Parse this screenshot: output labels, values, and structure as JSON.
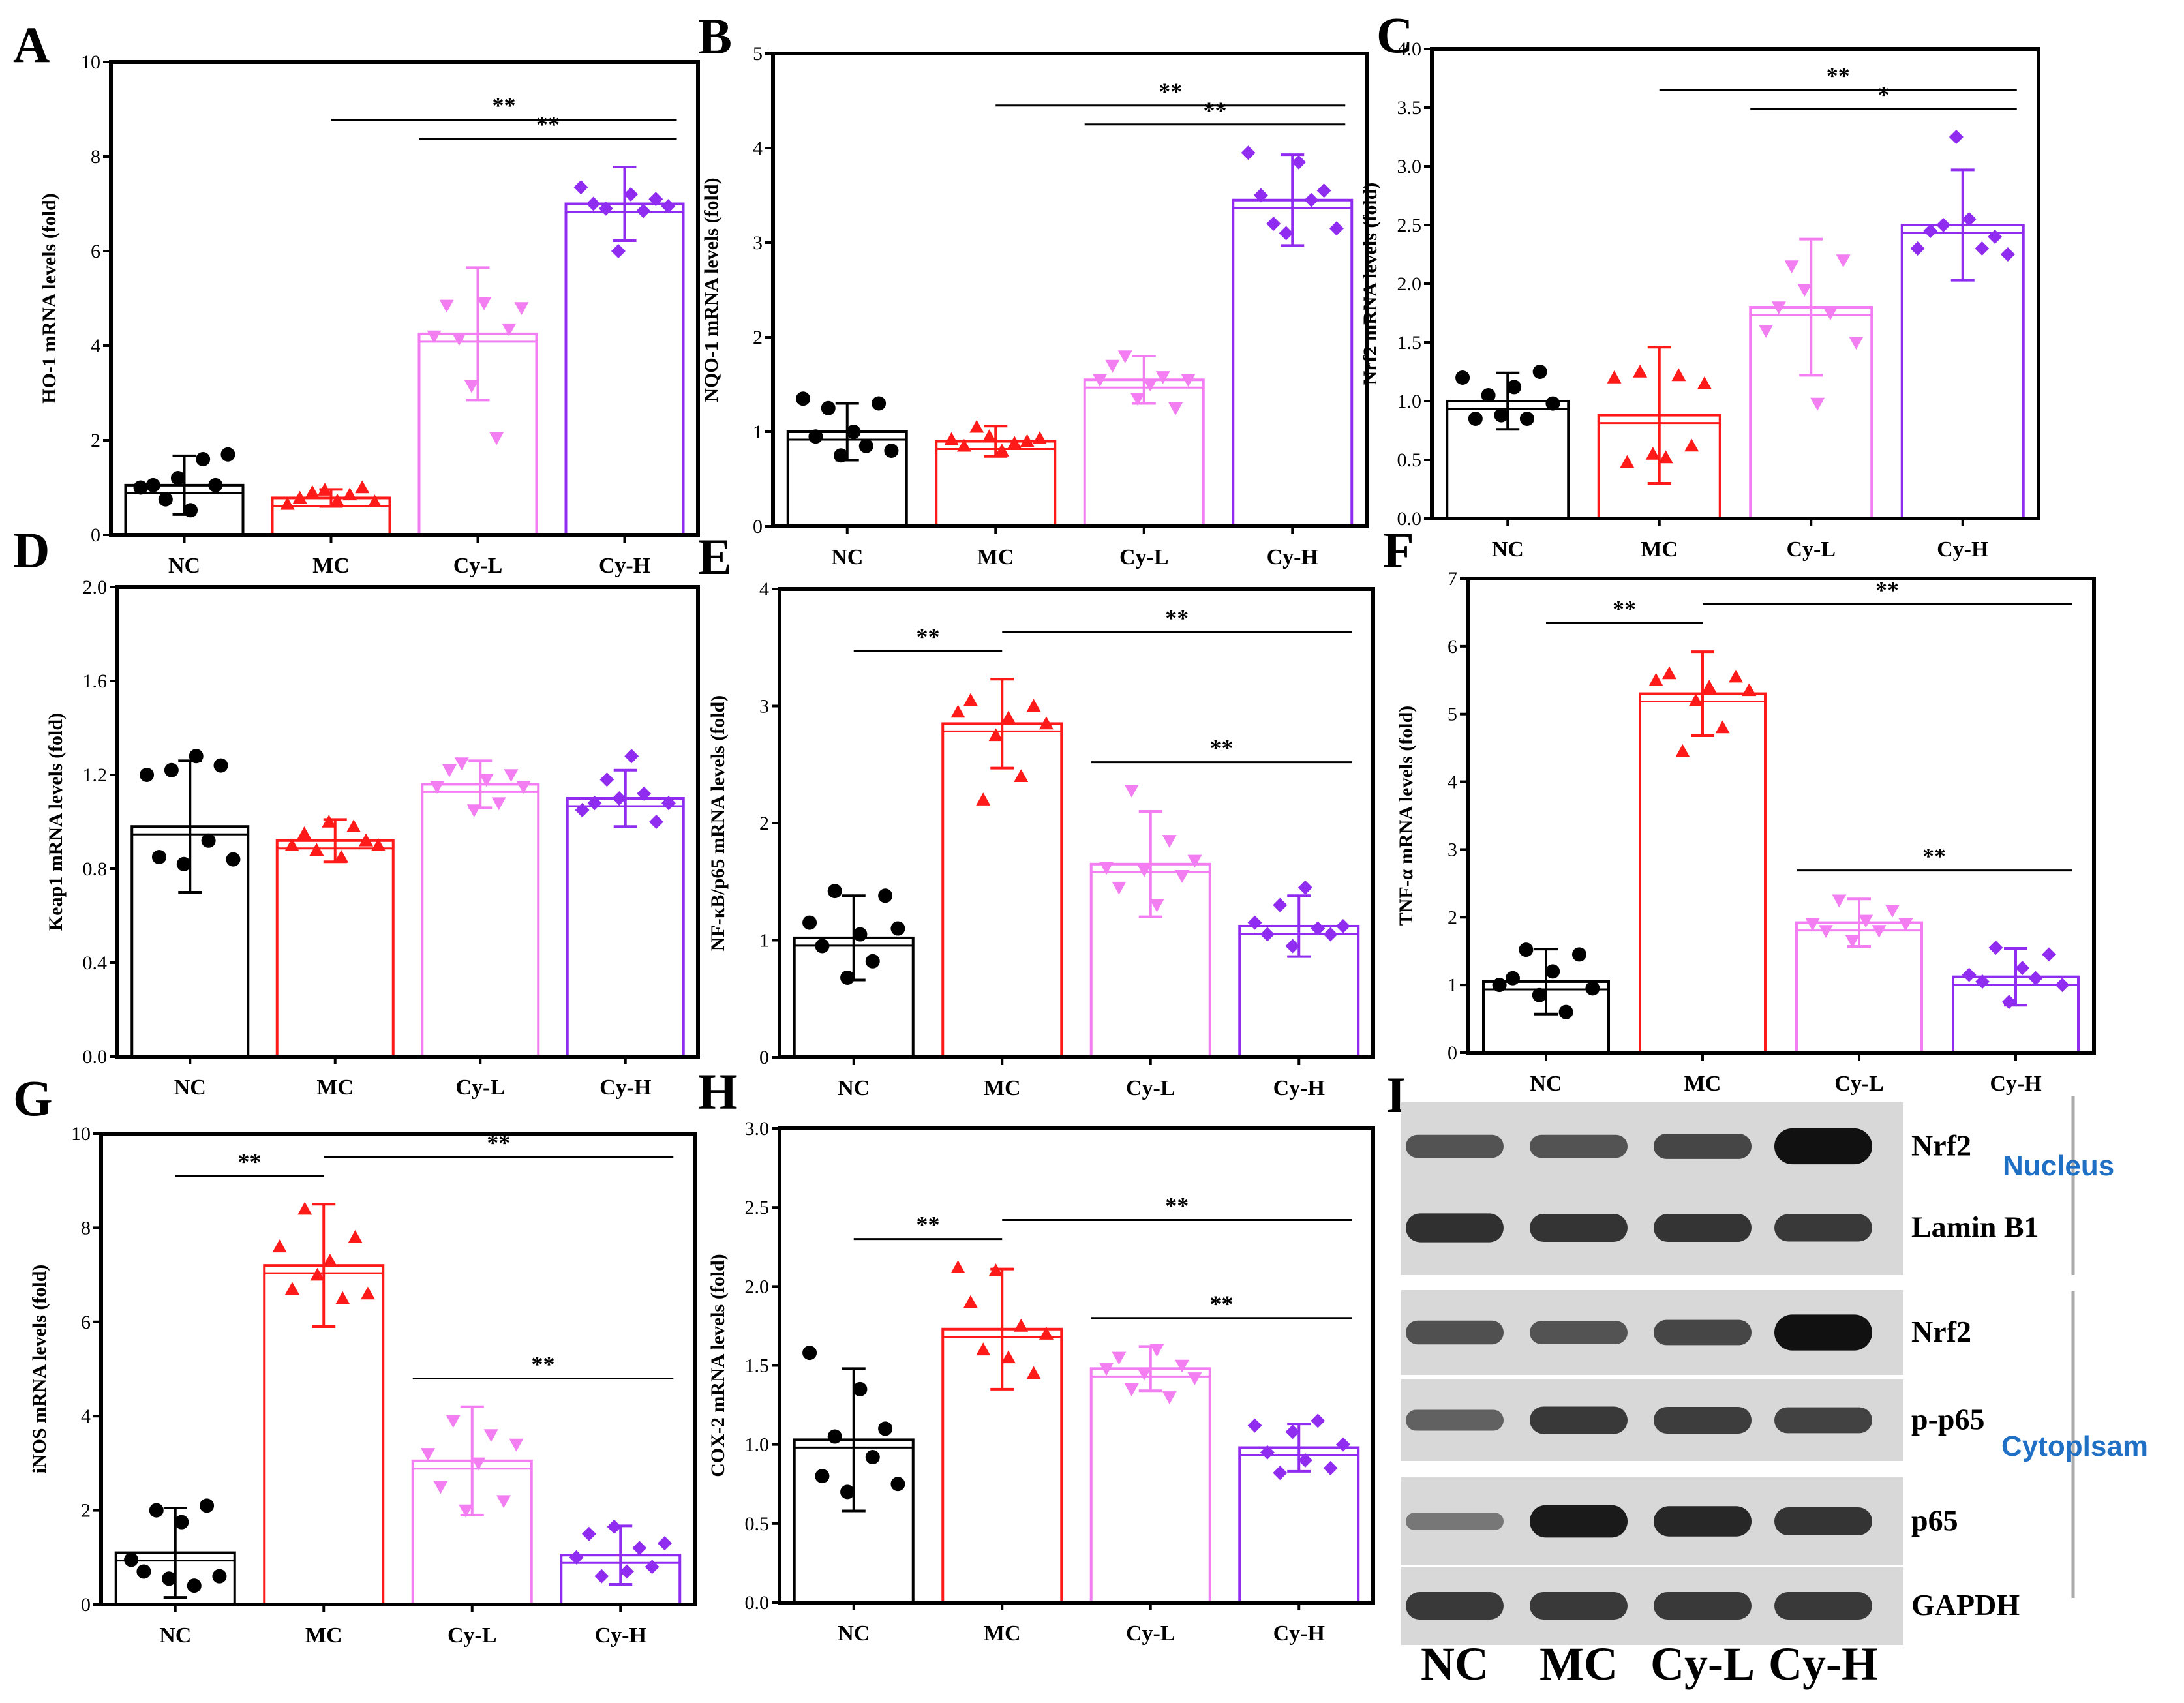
{
  "colors": {
    "NC": "#000000",
    "MC": "#ff1a1a",
    "Cy-L": "#f27ef2",
    "Cy-H": "#8f2cf0",
    "region_label": "#1f6fc4"
  },
  "chart_data": [
    {
      "panel": "A",
      "type": "bar",
      "categories": [
        "NC",
        "MC",
        "Cy-L",
        "Cy-H"
      ],
      "ylabel": "HO-1 mRNA levels (fold)",
      "ylim": [
        0,
        10
      ],
      "yticks": [
        "0",
        "2",
        "4",
        "6",
        "8",
        "10"
      ],
      "markers": [
        "circle",
        "triangle",
        "tri-down",
        "diamond"
      ],
      "values": [
        1.05,
        0.78,
        4.25,
        7.0
      ],
      "err": [
        0.62,
        0.18,
        1.4,
        0.78
      ],
      "points": [
        [
          1.0,
          1.05,
          0.75,
          1.2,
          0.52,
          1.6,
          1.05,
          1.7
        ],
        [
          0.65,
          0.78,
          0.9,
          0.95,
          0.72,
          0.85,
          1.0,
          0.7
        ],
        [
          4.2,
          4.85,
          4.15,
          3.15,
          4.9,
          2.05,
          4.35,
          4.8
        ],
        [
          7.35,
          7.0,
          6.9,
          6.0,
          7.2,
          6.85,
          7.1,
          6.95
        ]
      ],
      "sig": [
        {
          "from": 1,
          "to": 3,
          "text": "**"
        },
        {
          "from": 2,
          "to": 3,
          "text": "**"
        }
      ]
    },
    {
      "panel": "B",
      "type": "bar",
      "categories": [
        "NC",
        "MC",
        "Cy-L",
        "Cy-H"
      ],
      "ylabel": "NQO-1 mRNA levels (fold)",
      "ylim": [
        0,
        5
      ],
      "yticks": [
        "0",
        "1",
        "2",
        "3",
        "4",
        "5"
      ],
      "markers": [
        "circle",
        "triangle",
        "tri-down",
        "diamond"
      ],
      "values": [
        1.0,
        0.9,
        1.55,
        3.45
      ],
      "err": [
        0.3,
        0.16,
        0.25,
        0.48
      ],
      "points": [
        [
          1.35,
          0.95,
          1.25,
          0.75,
          1.0,
          0.85,
          1.3,
          0.8
        ],
        [
          0.92,
          0.85,
          1.05,
          0.95,
          0.8,
          0.88,
          0.9,
          0.93
        ],
        [
          1.55,
          1.7,
          1.8,
          1.35,
          1.5,
          1.58,
          1.25,
          1.55
        ],
        [
          3.95,
          3.5,
          3.2,
          3.1,
          3.85,
          3.45,
          3.55,
          3.15
        ]
      ],
      "sig": [
        {
          "from": 1,
          "to": 3,
          "text": "**"
        },
        {
          "from": 2,
          "to": 3,
          "text": "**"
        }
      ]
    },
    {
      "panel": "C",
      "type": "bar",
      "categories": [
        "NC",
        "MC",
        "Cy-L",
        "Cy-H"
      ],
      "ylabel": "Nrf2 mRNA levels (fold)",
      "ylim": [
        0,
        4
      ],
      "yticks": [
        "0.0",
        "0.5",
        "1.0",
        "1.5",
        "2.0",
        "2.5",
        "3.0",
        "3.5",
        "4.0"
      ],
      "markers": [
        "circle",
        "triangle",
        "tri-down",
        "diamond"
      ],
      "values": [
        1.0,
        0.88,
        1.8,
        2.5
      ],
      "err": [
        0.24,
        0.58,
        0.58,
        0.47
      ],
      "points": [
        [
          1.2,
          0.85,
          1.05,
          0.88,
          1.12,
          0.85,
          1.25,
          0.98
        ],
        [
          1.2,
          0.48,
          1.25,
          0.55,
          0.52,
          1.22,
          0.62,
          1.15
        ],
        [
          1.6,
          1.8,
          2.15,
          1.95,
          0.98,
          1.75,
          2.2,
          1.5
        ],
        [
          2.3,
          2.45,
          2.5,
          3.25,
          2.55,
          2.3,
          2.4,
          2.25
        ]
      ],
      "sig": [
        {
          "from": 1,
          "to": 3,
          "text": "**"
        },
        {
          "from": 2,
          "to": 3,
          "text": "*"
        }
      ]
    },
    {
      "panel": "D",
      "type": "bar",
      "categories": [
        "NC",
        "MC",
        "Cy-L",
        "Cy-H"
      ],
      "ylabel": "Keap1 mRNA levels (fold)",
      "ylim": [
        0,
        2
      ],
      "yticks": [
        "0.0",
        "0.4",
        "0.8",
        "1.2",
        "1.6",
        "2.0"
      ],
      "markers": [
        "circle",
        "triangle",
        "tri-down",
        "diamond"
      ],
      "values": [
        0.98,
        0.92,
        1.16,
        1.1
      ],
      "err": [
        0.28,
        0.09,
        0.1,
        0.12
      ],
      "points": [
        [
          1.2,
          0.85,
          1.22,
          0.82,
          1.28,
          0.92,
          1.24,
          0.84
        ],
        [
          0.9,
          0.95,
          0.88,
          1.0,
          0.85,
          0.98,
          0.92,
          0.9
        ],
        [
          1.15,
          1.22,
          1.25,
          1.05,
          1.18,
          1.08,
          1.2,
          1.15
        ],
        [
          1.05,
          1.08,
          1.18,
          1.1,
          1.28,
          1.12,
          1.0,
          1.08
        ]
      ],
      "sig": []
    },
    {
      "panel": "E",
      "type": "bar",
      "categories": [
        "NC",
        "MC",
        "Cy-L",
        "Cy-H"
      ],
      "ylabel": "NF-κB/p65 mRNA levels (fold)",
      "ylim": [
        0,
        4
      ],
      "yticks": [
        "0",
        "1",
        "2",
        "3",
        "4"
      ],
      "markers": [
        "circle",
        "triangle",
        "tri-down",
        "diamond"
      ],
      "values": [
        1.02,
        2.85,
        1.65,
        1.12
      ],
      "err": [
        0.36,
        0.38,
        0.45,
        0.26
      ],
      "points": [
        [
          1.15,
          0.95,
          1.42,
          0.68,
          1.05,
          0.82,
          1.38,
          1.1
        ],
        [
          2.95,
          3.05,
          2.2,
          2.75,
          2.9,
          2.4,
          3.0,
          2.85
        ],
        [
          1.62,
          1.45,
          2.28,
          1.6,
          1.3,
          1.85,
          1.55,
          1.68
        ],
        [
          1.15,
          1.05,
          1.3,
          0.95,
          1.45,
          1.1,
          1.05,
          1.12
        ]
      ],
      "sig": [
        {
          "from": 0,
          "to": 1,
          "text": "**"
        },
        {
          "from": 1,
          "to": 3,
          "text": "**"
        },
        {
          "from": 2,
          "to": 3,
          "text": "**"
        }
      ]
    },
    {
      "panel": "F",
      "type": "bar",
      "categories": [
        "NC",
        "MC",
        "Cy-L",
        "Cy-H"
      ],
      "ylabel": "TNF-α mRNA levels (fold)",
      "ylim": [
        0,
        7
      ],
      "yticks": [
        "0",
        "1",
        "2",
        "3",
        "4",
        "5",
        "6",
        "7"
      ],
      "markers": [
        "circle",
        "triangle",
        "tri-down",
        "diamond"
      ],
      "values": [
        1.05,
        5.3,
        1.92,
        1.12
      ],
      "err": [
        0.48,
        0.62,
        0.35,
        0.42
      ],
      "points": [
        [
          1.0,
          1.1,
          1.52,
          0.85,
          1.2,
          0.6,
          1.45,
          0.95
        ],
        [
          5.5,
          5.6,
          4.45,
          5.2,
          5.4,
          4.8,
          5.55,
          5.35
        ],
        [
          1.9,
          1.8,
          2.25,
          1.65,
          1.95,
          1.8,
          2.1,
          1.9
        ],
        [
          1.15,
          1.05,
          1.55,
          0.75,
          1.25,
          1.1,
          1.45,
          1.0
        ]
      ],
      "sig": [
        {
          "from": 0,
          "to": 1,
          "text": "**"
        },
        {
          "from": 1,
          "to": 3,
          "text": "**"
        },
        {
          "from": 2,
          "to": 3,
          "text": "**"
        }
      ]
    },
    {
      "panel": "G",
      "type": "bar",
      "categories": [
        "NC",
        "MC",
        "Cy-L",
        "Cy-H"
      ],
      "ylabel": "iNOS mRNA levels (fold)",
      "ylim": [
        0,
        10
      ],
      "yticks": [
        "0",
        "2",
        "4",
        "6",
        "8",
        "10"
      ],
      "markers": [
        "circle",
        "triangle",
        "tri-down",
        "diamond"
      ],
      "values": [
        1.1,
        7.2,
        3.05,
        1.05
      ],
      "err": [
        0.95,
        1.3,
        1.15,
        0.62
      ],
      "points": [
        [
          0.95,
          0.7,
          2.0,
          0.55,
          1.75,
          0.4,
          2.1,
          0.6
        ],
        [
          7.6,
          6.7,
          8.4,
          7.0,
          7.3,
          6.5,
          7.8,
          6.6
        ],
        [
          3.2,
          2.5,
          3.9,
          2.0,
          3.0,
          3.6,
          2.2,
          3.4
        ],
        [
          1.0,
          1.5,
          0.6,
          1.65,
          0.7,
          1.2,
          0.8,
          1.3
        ]
      ],
      "sig": [
        {
          "from": 0,
          "to": 1,
          "text": "**"
        },
        {
          "from": 1,
          "to": 3,
          "text": "**"
        },
        {
          "from": 2,
          "to": 3,
          "text": "**"
        }
      ]
    },
    {
      "panel": "H",
      "type": "bar",
      "categories": [
        "NC",
        "MC",
        "Cy-L",
        "Cy-H"
      ],
      "ylabel": "COX-2 mRNA levels (fold)",
      "ylim": [
        0,
        3
      ],
      "yticks": [
        "0.0",
        "0.5",
        "1.0",
        "1.5",
        "2.0",
        "2.5",
        "3.0"
      ],
      "markers": [
        "circle",
        "triangle",
        "tri-down",
        "diamond"
      ],
      "values": [
        1.03,
        1.73,
        1.48,
        0.98
      ],
      "err": [
        0.45,
        0.38,
        0.14,
        0.15
      ],
      "points": [
        [
          1.58,
          0.8,
          1.05,
          0.7,
          1.35,
          0.92,
          1.1,
          0.75
        ],
        [
          2.12,
          1.9,
          1.6,
          2.1,
          1.55,
          1.75,
          1.45,
          1.7
        ],
        [
          1.48,
          1.55,
          1.35,
          1.45,
          1.6,
          1.3,
          1.5,
          1.42
        ],
        [
          1.12,
          0.95,
          0.82,
          1.08,
          0.9,
          1.15,
          0.85,
          1.0
        ]
      ],
      "sig": [
        {
          "from": 0,
          "to": 1,
          "text": "**"
        },
        {
          "from": 1,
          "to": 3,
          "text": "**"
        },
        {
          "from": 2,
          "to": 3,
          "text": "**"
        }
      ]
    }
  ],
  "blot": {
    "panel": "I",
    "lanes": [
      "NC",
      "MC",
      "Cy-L",
      "Cy-H"
    ],
    "rows": [
      {
        "label": "Nrf2",
        "intensity": [
          0.7,
          0.7,
          0.85,
          1.6
        ]
      },
      {
        "label": "Lamin B1",
        "intensity": [
          1.1,
          1.05,
          1.05,
          1.0
        ]
      },
      {
        "label": "Nrf2",
        "intensity": [
          0.75,
          0.7,
          0.85,
          1.6
        ]
      },
      {
        "label": "p-p65",
        "intensity": [
          0.55,
          1.0,
          0.95,
          0.9
        ]
      },
      {
        "label": "p65",
        "intensity": [
          0.3,
          1.35,
          1.2,
          1.05
        ]
      },
      {
        "label": "GAPDH",
        "intensity": [
          1.0,
          1.0,
          1.0,
          1.0
        ]
      }
    ],
    "regions": [
      "Nucleus",
      "Cytoplsam"
    ]
  }
}
